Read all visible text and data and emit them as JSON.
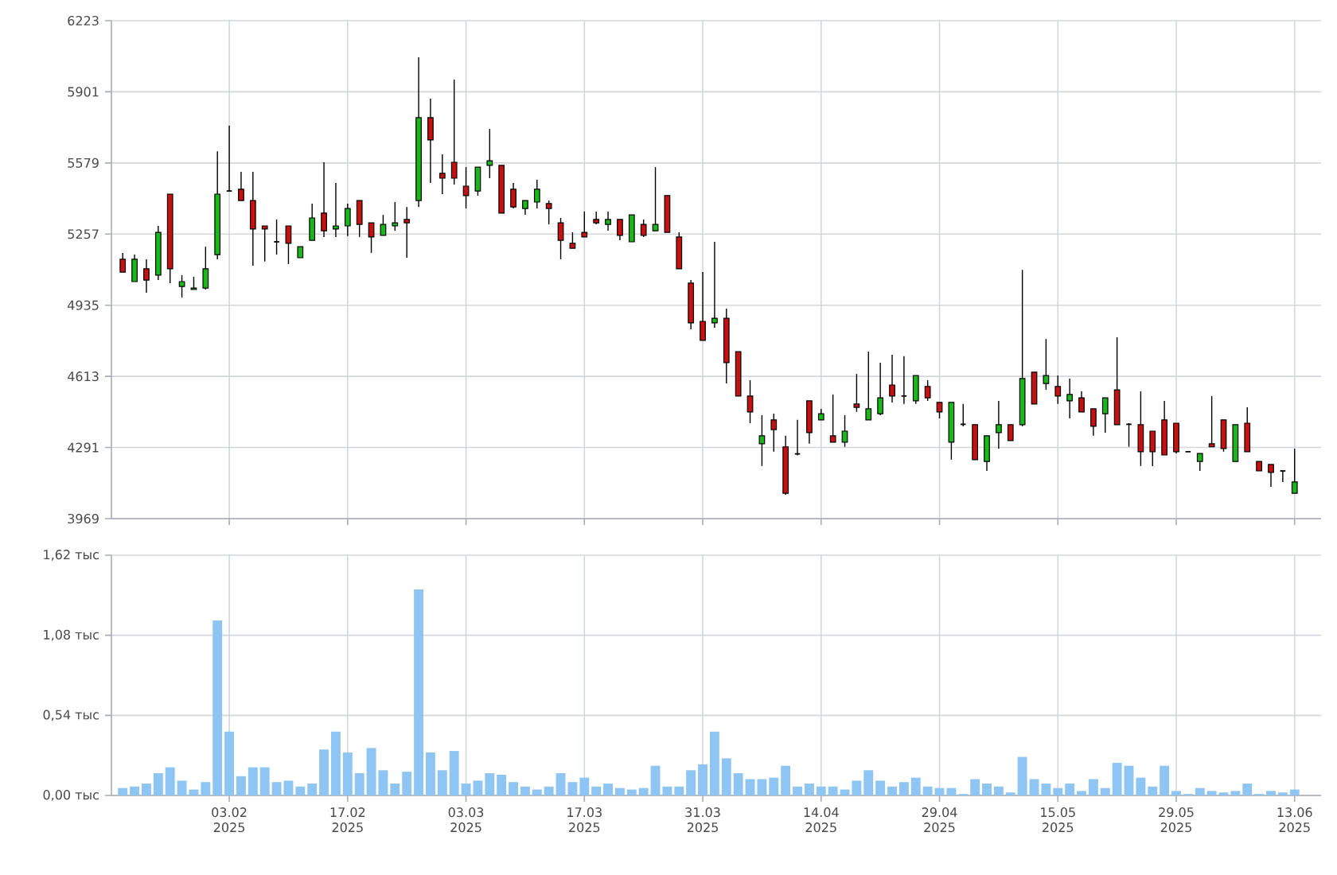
{
  "chart_data": [
    {
      "type": "candlestick",
      "categories": [
        null,
        null,
        null,
        null,
        null,
        null,
        null,
        null,
        null,
        null,
        null,
        null,
        null,
        null,
        null,
        null,
        null,
        null,
        null,
        null,
        null,
        null,
        null,
        null,
        null,
        null,
        null,
        null,
        null,
        null,
        null,
        null,
        null,
        null,
        null,
        null,
        null,
        null,
        null,
        null,
        null,
        null,
        null,
        null,
        null,
        null,
        null,
        null,
        null,
        null,
        null,
        null,
        null,
        null,
        null,
        null,
        null,
        null,
        null,
        null,
        null,
        null,
        null,
        null,
        null,
        null,
        null,
        null,
        null,
        null,
        null,
        null,
        null,
        null,
        null,
        null,
        null,
        null,
        null,
        null,
        null,
        null,
        null,
        null,
        null,
        null,
        null,
        null,
        null,
        null,
        null,
        null,
        null,
        null,
        null,
        null,
        null,
        null,
        null,
        null
      ],
      "ohlc": [
        [
          5143,
          5172,
          5085,
          5085
        ],
        [
          5042,
          5164,
          5042,
          5143
        ],
        [
          5100,
          5143,
          4992,
          5049
        ],
        [
          5071,
          5294,
          5049,
          5265
        ],
        [
          5438,
          5438,
          5035,
          5100
        ],
        [
          5020,
          5071,
          4970,
          5042
        ],
        [
          5006,
          5064,
          5006,
          5013
        ],
        [
          5013,
          5200,
          5006,
          5100
        ],
        [
          5164,
          5632,
          5143,
          5438
        ],
        [
          5452,
          5748,
          5452,
          5452
        ],
        [
          5460,
          5539,
          5409,
          5409
        ],
        [
          5409,
          5539,
          5114,
          5280
        ],
        [
          5294,
          5294,
          5133,
          5280
        ],
        [
          5222,
          5323,
          5164,
          5222
        ],
        [
          5294,
          5294,
          5121,
          5215
        ],
        [
          5150,
          5200,
          5150,
          5200
        ],
        [
          5229,
          5395,
          5229,
          5330
        ],
        [
          5352,
          5582,
          5244,
          5272
        ],
        [
          5280,
          5488,
          5244,
          5294
        ],
        [
          5294,
          5395,
          5248,
          5373
        ],
        [
          5409,
          5409,
          5244,
          5301
        ],
        [
          5308,
          5308,
          5172,
          5244
        ],
        [
          5251,
          5344,
          5251,
          5301
        ],
        [
          5294,
          5402,
          5272,
          5308
        ],
        [
          5323,
          5380,
          5150,
          5308
        ],
        [
          5409,
          6057,
          5380,
          5784
        ],
        [
          5784,
          5870,
          5488,
          5683
        ],
        [
          5532,
          5618,
          5438,
          5510
        ],
        [
          5582,
          5956,
          5481,
          5510
        ],
        [
          5474,
          5560,
          5373,
          5431
        ],
        [
          5452,
          5560,
          5431,
          5560
        ],
        [
          5568,
          5733,
          5510,
          5589
        ],
        [
          5568,
          5568,
          5352,
          5352
        ],
        [
          5460,
          5488,
          5373,
          5380
        ],
        [
          5373,
          5409,
          5344,
          5409
        ],
        [
          5402,
          5503,
          5373,
          5460
        ],
        [
          5395,
          5409,
          5301,
          5373
        ],
        [
          5308,
          5330,
          5143,
          5229
        ],
        [
          5215,
          5265,
          5193,
          5193
        ],
        [
          5265,
          5359,
          5244,
          5244
        ],
        [
          5323,
          5359,
          5301,
          5308
        ],
        [
          5301,
          5359,
          5272,
          5323
        ],
        [
          5323,
          5323,
          5229,
          5251
        ],
        [
          5222,
          5344,
          5222,
          5344
        ],
        [
          5301,
          5323,
          5244,
          5251
        ],
        [
          5272,
          5560,
          5272,
          5301
        ],
        [
          5431,
          5431,
          5265,
          5265
        ],
        [
          5244,
          5265,
          5100,
          5100
        ],
        [
          5035,
          5049,
          4826,
          4855
        ],
        [
          4862,
          5085,
          4776,
          4776
        ],
        [
          4855,
          5222,
          4833,
          4876
        ],
        [
          4876,
          4920,
          4581,
          4675
        ],
        [
          4725,
          4725,
          4524,
          4524
        ],
        [
          4524,
          4596,
          4401,
          4452
        ],
        [
          4308,
          4437,
          4207,
          4344
        ],
        [
          4416,
          4444,
          4272,
          4372
        ],
        [
          4294,
          4344,
          4077,
          4084
        ],
        [
          4262,
          4416,
          4255,
          4262
        ],
        [
          4502,
          4502,
          4308,
          4358
        ],
        [
          4416,
          4466,
          4416,
          4444
        ],
        [
          4344,
          4531,
          4315,
          4315
        ],
        [
          4315,
          4437,
          4294,
          4365
        ],
        [
          4488,
          4624,
          4452,
          4473
        ],
        [
          4416,
          4725,
          4416,
          4466
        ],
        [
          4444,
          4675,
          4437,
          4516
        ],
        [
          4574,
          4711,
          4495,
          4524
        ],
        [
          4524,
          4704,
          4488,
          4524
        ],
        [
          4502,
          4617,
          4488,
          4617
        ],
        [
          4567,
          4596,
          4502,
          4516
        ],
        [
          4495,
          4495,
          4423,
          4452
        ],
        [
          4315,
          4495,
          4236,
          4495
        ],
        [
          4396,
          4488,
          4387,
          4396
        ],
        [
          4394,
          4394,
          4236,
          4236
        ],
        [
          4228,
          4344,
          4185,
          4344
        ],
        [
          4358,
          4502,
          4286,
          4394
        ],
        [
          4394,
          4394,
          4322,
          4322
        ],
        [
          4394,
          5095,
          4387,
          4603
        ],
        [
          4632,
          4632,
          4488,
          4488
        ],
        [
          4581,
          4782,
          4552,
          4617
        ],
        [
          4567,
          4617,
          4488,
          4524
        ],
        [
          4502,
          4603,
          4423,
          4531
        ],
        [
          4516,
          4545,
          4452,
          4452
        ],
        [
          4466,
          4466,
          4344,
          4387
        ],
        [
          4444,
          4516,
          4358,
          4516
        ],
        [
          4552,
          4790,
          4394,
          4394
        ],
        [
          4396,
          4401,
          4294,
          4396
        ],
        [
          4394,
          4545,
          4207,
          4272
        ],
        [
          4365,
          4365,
          4207,
          4272
        ],
        [
          4416,
          4502,
          4257,
          4257
        ],
        [
          4401,
          4401,
          4264,
          4272
        ],
        [
          4272,
          4272,
          4272,
          4272
        ],
        [
          4228,
          4264,
          4185,
          4264
        ],
        [
          4308,
          4524,
          4294,
          4294
        ],
        [
          4416,
          4416,
          4272,
          4286
        ],
        [
          4228,
          4394,
          4228,
          4394
        ],
        [
          4401,
          4473,
          4272,
          4272
        ],
        [
          4228,
          4228,
          4185,
          4185
        ],
        [
          4214,
          4214,
          4113,
          4178
        ],
        [
          4185,
          4185,
          4135,
          4185
        ],
        [
          4084,
          4286,
          4084,
          4135
        ]
      ],
      "ylim": [
        3969,
        6223
      ],
      "yticks": [
        3969,
        4291,
        4613,
        4935,
        5257,
        5579,
        5901,
        6223
      ],
      "grid": true,
      "tick_labels": "y"
    },
    {
      "type": "bar",
      "categories": [
        null,
        null,
        null,
        null,
        null,
        null,
        null,
        null,
        null,
        "03.02 2025",
        null,
        null,
        null,
        null,
        null,
        null,
        null,
        null,
        null,
        "17.02 2025",
        null,
        null,
        null,
        null,
        null,
        null,
        null,
        null,
        null,
        "03.03 2025",
        null,
        null,
        null,
        null,
        null,
        null,
        null,
        null,
        null,
        "17.03 2025",
        null,
        null,
        null,
        null,
        null,
        null,
        null,
        null,
        null,
        "31.03 2025",
        null,
        null,
        null,
        null,
        null,
        null,
        null,
        null,
        null,
        "14.04 2025",
        null,
        null,
        null,
        null,
        null,
        null,
        null,
        null,
        null,
        "29.04 2025",
        null,
        null,
        null,
        null,
        null,
        null,
        null,
        null,
        null,
        "15.05 2025",
        null,
        null,
        null,
        null,
        null,
        null,
        null,
        null,
        null,
        "29.05 2025",
        null,
        null,
        null,
        null,
        null,
        null,
        null,
        null,
        null,
        "13.06 2025"
      ],
      "values": [
        0.05,
        0.06,
        0.08,
        0.15,
        0.19,
        0.1,
        0.04,
        0.09,
        1.18,
        0.43,
        0.13,
        0.19,
        0.19,
        0.09,
        0.1,
        0.06,
        0.08,
        0.31,
        0.43,
        0.29,
        0.15,
        0.32,
        0.17,
        0.08,
        0.16,
        1.39,
        0.29,
        0.17,
        0.3,
        0.08,
        0.1,
        0.15,
        0.14,
        0.09,
        0.06,
        0.04,
        0.06,
        0.15,
        0.09,
        0.12,
        0.06,
        0.08,
        0.05,
        0.04,
        0.05,
        0.2,
        0.06,
        0.06,
        0.17,
        0.21,
        0.43,
        0.25,
        0.15,
        0.11,
        0.11,
        0.12,
        0.2,
        0.06,
        0.08,
        0.06,
        0.06,
        0.04,
        0.1,
        0.17,
        0.1,
        0.06,
        0.09,
        0.12,
        0.06,
        0.05,
        0.05,
        0.01,
        0.11,
        0.08,
        0.06,
        0.02,
        0.26,
        0.11,
        0.08,
        0.05,
        0.08,
        0.03,
        0.11,
        0.05,
        0.22,
        0.2,
        0.12,
        0.06,
        0.2,
        0.03,
        0.01,
        0.05,
        0.03,
        0.02,
        0.03,
        0.08,
        0.01,
        0.03,
        0.02,
        0.04
      ],
      "color": "#8ec5f2",
      "ylim": [
        0,
        1.62
      ],
      "yticks": [
        {
          "value": 0,
          "label": "0,00 тыс"
        },
        {
          "value": 0.54,
          "label": "0,54 тыс"
        },
        {
          "value": 1.08,
          "label": "1,08 тыс"
        },
        {
          "value": 1.62,
          "label": "1,62 тыс"
        }
      ],
      "grid": true
    }
  ]
}
